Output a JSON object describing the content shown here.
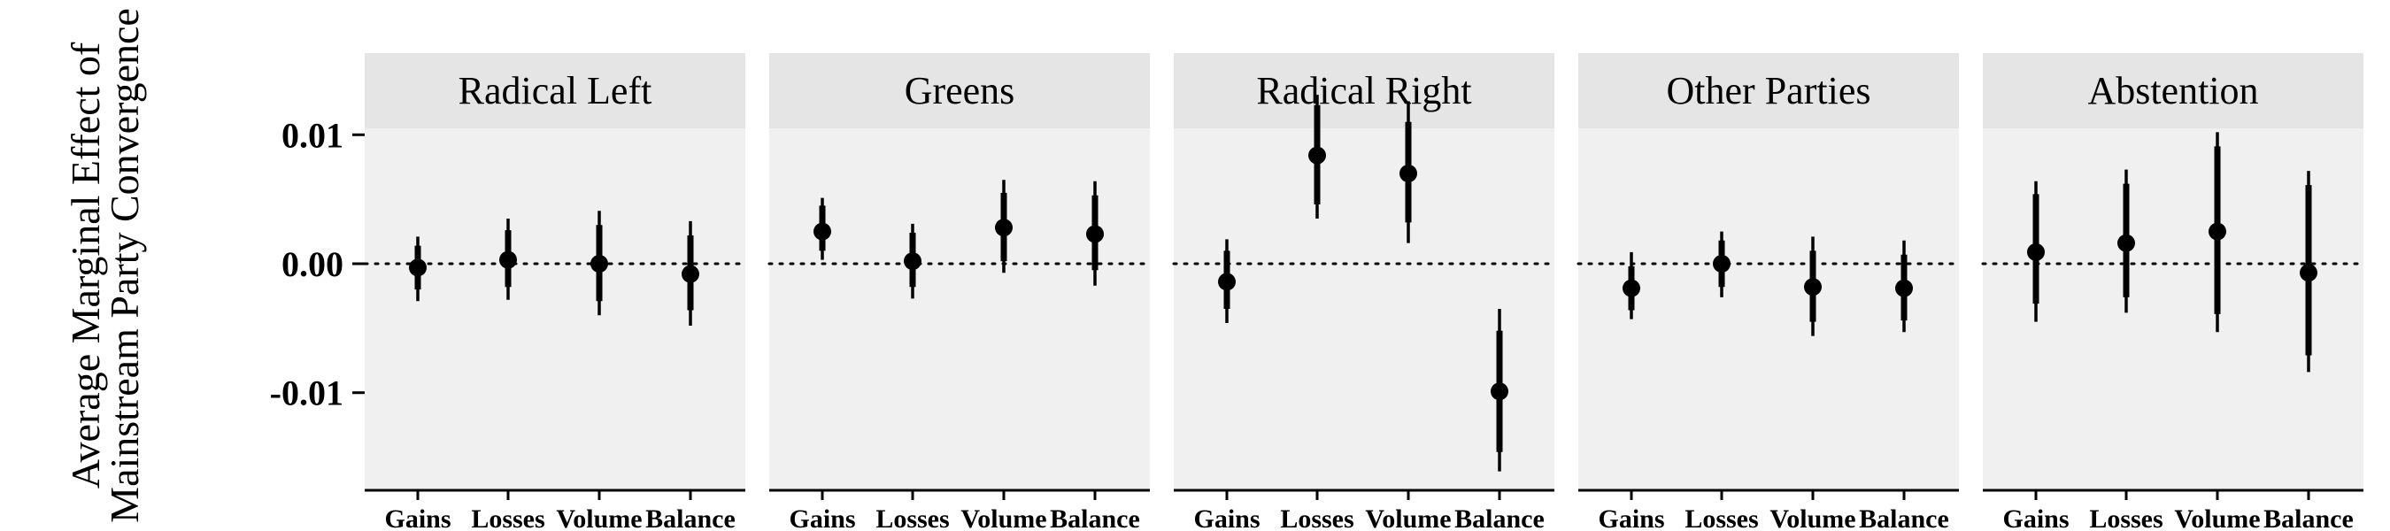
{
  "chart_data": {
    "type": "scatter",
    "subtype": "point-range (coefficient plot)",
    "ylabel_lines": [
      "Average Marginal Effect of",
      "Mainstream Party Convergence"
    ],
    "categories": [
      "Gains",
      "Losses",
      "Volume",
      "Balance"
    ],
    "yticks": [
      0.01,
      0.0,
      -0.01
    ],
    "ytick_labels": [
      "0.01",
      "0.00",
      "-0.01"
    ],
    "ylim": [
      -0.0175,
      0.0105
    ],
    "reference_line": 0,
    "panels": [
      {
        "title": "Radical Left",
        "points": [
          {
            "category": "Gains",
            "estimate": -0.0003,
            "ci90": [
              -0.002,
              0.0014
            ],
            "ci95": [
              -0.0029,
              0.0021
            ]
          },
          {
            "category": "Losses",
            "estimate": 0.0003,
            "ci90": [
              -0.0018,
              0.0026
            ],
            "ci95": [
              -0.0028,
              0.0035
            ]
          },
          {
            "category": "Volume",
            "estimate": 0.0,
            "ci90": [
              -0.0029,
              0.003
            ],
            "ci95": [
              -0.004,
              0.0041
            ]
          },
          {
            "category": "Balance",
            "estimate": -0.0008,
            "ci90": [
              -0.0036,
              0.0022
            ],
            "ci95": [
              -0.0048,
              0.0033
            ]
          }
        ]
      },
      {
        "title": "Greens",
        "points": [
          {
            "category": "Gains",
            "estimate": 0.0025,
            "ci90": [
              0.001,
              0.0045
            ],
            "ci95": [
              0.0003,
              0.0051
            ]
          },
          {
            "category": "Losses",
            "estimate": 0.0002,
            "ci90": [
              -0.0018,
              0.0024
            ],
            "ci95": [
              -0.0027,
              0.0031
            ]
          },
          {
            "category": "Volume",
            "estimate": 0.0028,
            "ci90": [
              0.0002,
              0.0055
            ],
            "ci95": [
              -0.0007,
              0.0065
            ]
          },
          {
            "category": "Balance",
            "estimate": 0.0023,
            "ci90": [
              -0.0005,
              0.0053
            ],
            "ci95": [
              -0.0017,
              0.0064
            ]
          }
        ]
      },
      {
        "title": "Radical Right",
        "points": [
          {
            "category": "Gains",
            "estimate": -0.0014,
            "ci90": [
              -0.0035,
              0.001
            ],
            "ci95": [
              -0.0046,
              0.0019
            ]
          },
          {
            "category": "Losses",
            "estimate": 0.0084,
            "ci90": [
              0.0046,
              0.0123
            ],
            "ci95": [
              0.0035,
              0.0131
            ]
          },
          {
            "category": "Volume",
            "estimate": 0.007,
            "ci90": [
              0.0032,
              0.011
            ],
            "ci95": [
              0.0016,
              0.0126
            ]
          },
          {
            "category": "Balance",
            "estimate": -0.0099,
            "ci90": [
              -0.0146,
              -0.0052
            ],
            "ci95": [
              -0.0161,
              -0.0035
            ]
          }
        ]
      },
      {
        "title": "Other Parties",
        "points": [
          {
            "category": "Gains",
            "estimate": -0.0019,
            "ci90": [
              -0.0036,
              -0.0002
            ],
            "ci95": [
              -0.0043,
              0.0009
            ]
          },
          {
            "category": "Losses",
            "estimate": 0.0,
            "ci90": [
              -0.0018,
              0.0018
            ],
            "ci95": [
              -0.0026,
              0.0025
            ]
          },
          {
            "category": "Volume",
            "estimate": -0.0018,
            "ci90": [
              -0.0045,
              0.001
            ],
            "ci95": [
              -0.0056,
              0.0021
            ]
          },
          {
            "category": "Balance",
            "estimate": -0.0019,
            "ci90": [
              -0.0044,
              0.0007
            ],
            "ci95": [
              -0.0053,
              0.0018
            ]
          }
        ]
      },
      {
        "title": "Abstention",
        "points": [
          {
            "category": "Gains",
            "estimate": 0.0009,
            "ci90": [
              -0.0031,
              0.0054
            ],
            "ci95": [
              -0.0045,
              0.0064
            ]
          },
          {
            "category": "Losses",
            "estimate": 0.0016,
            "ci90": [
              -0.0026,
              0.0062
            ],
            "ci95": [
              -0.0038,
              0.0073
            ]
          },
          {
            "category": "Volume",
            "estimate": 0.0025,
            "ci90": [
              -0.0039,
              0.0091
            ],
            "ci95": [
              -0.0053,
              0.0102
            ]
          },
          {
            "category": "Balance",
            "estimate": -0.0007,
            "ci90": [
              -0.0071,
              0.0061
            ],
            "ci95": [
              -0.0084,
              0.0072
            ]
          }
        ]
      }
    ],
    "colors": {
      "panel_bg": "#f0f0f0",
      "strip_bg": "#e5e5e5",
      "point": "#000000",
      "axis": "#000000"
    },
    "grid": false
  }
}
